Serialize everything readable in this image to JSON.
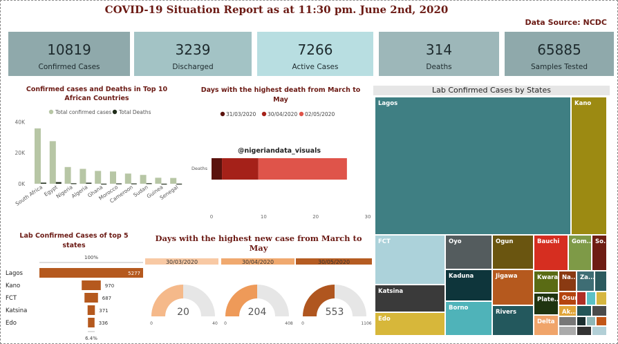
{
  "header": {
    "title": "COVID-19 Situation Report as at 11:30 pm. June 2nd, 2020",
    "source": "Data Source: NCDC"
  },
  "kpis": [
    {
      "value": "10819",
      "label": "Confirmed Cases",
      "color": "#8fa9ab"
    },
    {
      "value": "3239",
      "label": "Discharged",
      "color": "#a3c3c5"
    },
    {
      "value": "7266",
      "label": "Active Cases",
      "color": "#b8dee1"
    },
    {
      "value": "314",
      "label": "Deaths",
      "color": "#9db7b9"
    },
    {
      "value": "65885",
      "label": "Samples Tested",
      "color": "#8fa9ab"
    }
  ],
  "africa": {
    "title": "Confirmed cases and Deaths in Top 10 African Countries",
    "legend": [
      "Total confirmed cases",
      "Total Deaths"
    ],
    "colors": [
      "#b7c6a5",
      "#1f2c1a"
    ]
  },
  "deaths_days": {
    "title": "Days with the highest death from March to May",
    "watermark": "@nigeriandata_visuals",
    "legend": [
      "31/03/2020",
      "30/04/2020",
      "02/05/2020"
    ],
    "colors": [
      "#5a120d",
      "#a52119",
      "#df544a"
    ]
  },
  "newcase": {
    "title": "Days with the highest new case from March to May",
    "days": [
      "30/03/2020",
      "30/04/2020",
      "30/05/2020"
    ],
    "values": [
      "20",
      "204",
      "553"
    ],
    "min": [
      "0",
      "0",
      "0"
    ],
    "max": [
      "40",
      "408",
      "1106"
    ],
    "colors": [
      "#f5b98a",
      "#ee9a59",
      "#b0561f"
    ],
    "header_colors": [
      "#f8c9a4",
      "#f0a96f",
      "#b55c22"
    ]
  },
  "funnel": {
    "title": "Lab Confirmed Cases of top 5 states",
    "top_pct": "100%",
    "bottom_pct": "6.4%",
    "color": "#b5591e"
  },
  "treemap": {
    "title": "Lab Confirmed Cases by States",
    "small_labels": [
      "Na...",
      "Za...",
      "So...",
      "Gom...",
      "Plate...",
      "Osun",
      "Ak..."
    ]
  },
  "chart_data": [
    {
      "type": "bar",
      "title": "Confirmed cases and Deaths in Top 10 African Countries",
      "categories": [
        "South Africa",
        "Egypt",
        "Nigeria",
        "Algeria",
        "Ghana",
        "Morocco",
        "Cameroon",
        "Sudan",
        "Guinea",
        "Senegal"
      ],
      "series": [
        {
          "name": "Total confirmed cases",
          "values": [
            35812,
            27536,
            10819,
            9626,
            8297,
            7922,
            6585,
            5714,
            3886,
            3739
          ]
        },
        {
          "name": "Total Deaths",
          "values": [
            705,
            1052,
            314,
            667,
            38,
            206,
            200,
            333,
            23,
            42
          ]
        }
      ],
      "yticks": [
        "0K",
        "20K",
        "40K"
      ],
      "ylim": [
        0,
        42000
      ]
    },
    {
      "type": "bar",
      "title": "Days with the highest death from March to May",
      "orientation": "horizontal-stacked",
      "categories": [
        "Deaths"
      ],
      "series": [
        {
          "name": "31/03/2020",
          "values": [
            2
          ]
        },
        {
          "name": "30/04/2020",
          "values": [
            7
          ]
        },
        {
          "name": "02/05/2020",
          "values": [
            17
          ]
        }
      ],
      "xticks": [
        "0",
        "10",
        "20",
        "30"
      ],
      "xlim": [
        0,
        30
      ]
    },
    {
      "type": "bar",
      "title": "Lab Confirmed Cases of top 5 states",
      "orientation": "funnel",
      "categories": [
        "Lagos",
        "Kano",
        "FCT",
        "Katsina",
        "Edo"
      ],
      "values": [
        5277,
        970,
        687,
        371,
        336
      ]
    },
    {
      "type": "heatmap",
      "title": "Lab Confirmed Cases by States",
      "categories": [
        "Lagos",
        "Kano",
        "FCT",
        "Katsina",
        "Edo",
        "Oyo",
        "Kaduna",
        "Borno",
        "Ogun",
        "Jigawa",
        "Rivers",
        "Bauchi",
        "Gom...",
        "So...",
        "Kwara",
        "Plate...",
        "Delta",
        "Na...",
        "Za...",
        "Osun",
        "Ak..."
      ],
      "values": [
        5277,
        970,
        687,
        371,
        336,
        256,
        223,
        218,
        214,
        213,
        204,
        199,
        116,
        113,
        112,
        95,
        70,
        70,
        70,
        39,
        37
      ]
    }
  ]
}
